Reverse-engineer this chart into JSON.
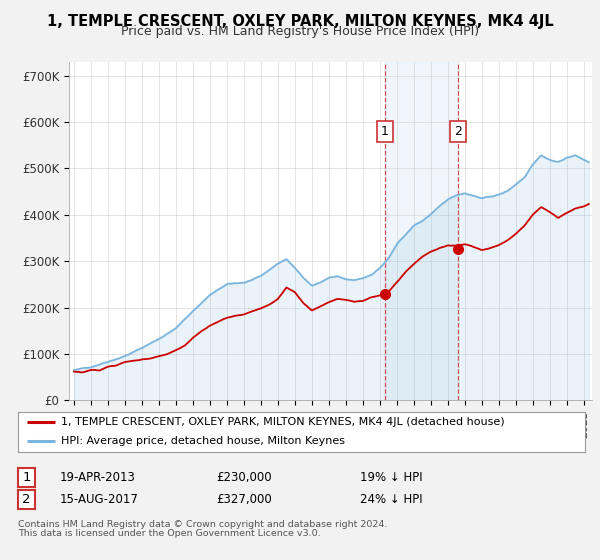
{
  "title": "1, TEMPLE CRESCENT, OXLEY PARK, MILTON KEYNES, MK4 4JL",
  "subtitle": "Price paid vs. HM Land Registry's House Price Index (HPI)",
  "ylabel_ticks": [
    "£0",
    "£100K",
    "£200K",
    "£300K",
    "£400K",
    "£500K",
    "£600K",
    "£700K"
  ],
  "ylim": [
    0,
    730000
  ],
  "xlim_start": 1994.7,
  "xlim_end": 2025.5,
  "sale1_date": 2013.3,
  "sale1_price": 230000,
  "sale1_label": "19-APR-2013",
  "sale1_pct": "19%",
  "sale2_date": 2017.6,
  "sale2_price": 327000,
  "sale2_label": "15-AUG-2017",
  "sale2_pct": "24%",
  "hpi_color": "#7ab5de",
  "hpi_fill_color": "#c5dff0",
  "price_color": "#cc0000",
  "legend_line1": "1, TEMPLE CRESCENT, OXLEY PARK, MILTON KEYNES, MK4 4JL (detached house)",
  "legend_line2": "HPI: Average price, detached house, Milton Keynes",
  "footnote1": "Contains HM Land Registry data © Crown copyright and database right 2024.",
  "footnote2": "This data is licensed under the Open Government Licence v3.0.",
  "background_color": "#f2f2f2",
  "plot_bg_color": "#ffffff",
  "grid_color": "#d0d0d0",
  "hpi_keypoints": [
    [
      1995.0,
      65000
    ],
    [
      1996.0,
      72000
    ],
    [
      1997.0,
      85000
    ],
    [
      1998.0,
      98000
    ],
    [
      1999.0,
      115000
    ],
    [
      2000.0,
      135000
    ],
    [
      2001.0,
      158000
    ],
    [
      2002.0,
      195000
    ],
    [
      2003.0,
      230000
    ],
    [
      2004.0,
      252000
    ],
    [
      2005.0,
      255000
    ],
    [
      2006.0,
      268000
    ],
    [
      2007.0,
      295000
    ],
    [
      2007.5,
      305000
    ],
    [
      2008.0,
      285000
    ],
    [
      2008.5,
      265000
    ],
    [
      2009.0,
      248000
    ],
    [
      2009.5,
      255000
    ],
    [
      2010.0,
      265000
    ],
    [
      2010.5,
      268000
    ],
    [
      2011.0,
      260000
    ],
    [
      2011.5,
      258000
    ],
    [
      2012.0,
      262000
    ],
    [
      2012.5,
      270000
    ],
    [
      2013.0,
      285000
    ],
    [
      2013.5,
      305000
    ],
    [
      2014.0,
      335000
    ],
    [
      2014.5,
      355000
    ],
    [
      2015.0,
      375000
    ],
    [
      2015.5,
      385000
    ],
    [
      2016.0,
      400000
    ],
    [
      2016.5,
      415000
    ],
    [
      2017.0,
      430000
    ],
    [
      2017.5,
      440000
    ],
    [
      2018.0,
      445000
    ],
    [
      2018.5,
      440000
    ],
    [
      2019.0,
      435000
    ],
    [
      2019.5,
      438000
    ],
    [
      2020.0,
      442000
    ],
    [
      2020.5,
      450000
    ],
    [
      2021.0,
      465000
    ],
    [
      2021.5,
      480000
    ],
    [
      2022.0,
      510000
    ],
    [
      2022.5,
      530000
    ],
    [
      2023.0,
      520000
    ],
    [
      2023.5,
      515000
    ],
    [
      2024.0,
      525000
    ],
    [
      2024.5,
      530000
    ],
    [
      2025.0,
      520000
    ],
    [
      2025.3,
      515000
    ]
  ],
  "price_keypoints": [
    [
      1995.0,
      62000
    ],
    [
      1995.5,
      60000
    ],
    [
      1996.0,
      65000
    ],
    [
      1996.5,
      63000
    ],
    [
      1997.0,
      72000
    ],
    [
      1997.5,
      75000
    ],
    [
      1998.0,
      82000
    ],
    [
      1998.5,
      85000
    ],
    [
      1999.0,
      88000
    ],
    [
      1999.5,
      90000
    ],
    [
      2000.0,
      95000
    ],
    [
      2000.5,
      100000
    ],
    [
      2001.0,
      108000
    ],
    [
      2001.5,
      118000
    ],
    [
      2002.0,
      135000
    ],
    [
      2002.5,
      150000
    ],
    [
      2003.0,
      162000
    ],
    [
      2003.5,
      170000
    ],
    [
      2004.0,
      178000
    ],
    [
      2004.5,
      182000
    ],
    [
      2005.0,
      185000
    ],
    [
      2005.5,
      192000
    ],
    [
      2006.0,
      198000
    ],
    [
      2006.5,
      205000
    ],
    [
      2007.0,
      218000
    ],
    [
      2007.5,
      242000
    ],
    [
      2008.0,
      232000
    ],
    [
      2008.5,
      208000
    ],
    [
      2009.0,
      192000
    ],
    [
      2009.5,
      200000
    ],
    [
      2010.0,
      208000
    ],
    [
      2010.5,
      215000
    ],
    [
      2011.0,
      212000
    ],
    [
      2011.5,
      208000
    ],
    [
      2012.0,
      210000
    ],
    [
      2012.5,
      218000
    ],
    [
      2013.0,
      222000
    ],
    [
      2013.3,
      230000
    ],
    [
      2013.5,
      228000
    ],
    [
      2014.0,
      250000
    ],
    [
      2014.5,
      272000
    ],
    [
      2015.0,
      290000
    ],
    [
      2015.5,
      305000
    ],
    [
      2016.0,
      315000
    ],
    [
      2016.5,
      322000
    ],
    [
      2017.0,
      328000
    ],
    [
      2017.6,
      327000
    ],
    [
      2018.0,
      330000
    ],
    [
      2018.5,
      325000
    ],
    [
      2019.0,
      318000
    ],
    [
      2019.5,
      322000
    ],
    [
      2020.0,
      328000
    ],
    [
      2020.5,
      338000
    ],
    [
      2021.0,
      352000
    ],
    [
      2021.5,
      368000
    ],
    [
      2022.0,
      392000
    ],
    [
      2022.5,
      408000
    ],
    [
      2023.0,
      398000
    ],
    [
      2023.5,
      385000
    ],
    [
      2024.0,
      395000
    ],
    [
      2024.5,
      405000
    ],
    [
      2025.0,
      410000
    ],
    [
      2025.3,
      415000
    ]
  ]
}
